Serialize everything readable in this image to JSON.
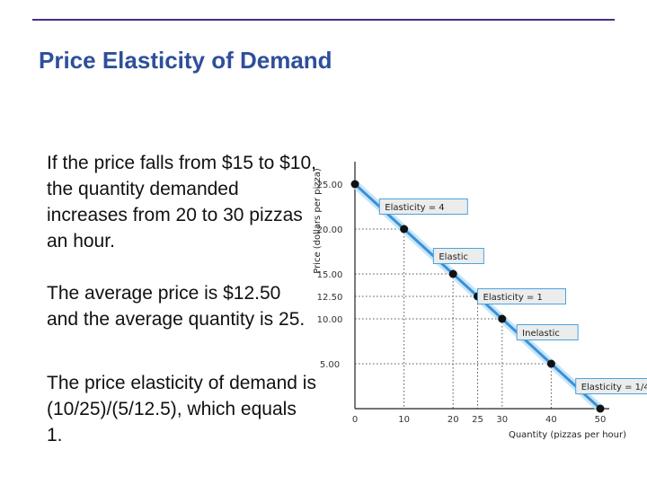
{
  "slide": {
    "title": "Price Elasticity of Demand",
    "paragraphs": [
      "If the price falls from $15 to $10, the quantity demanded increases from 20 to 30 pizzas an hour.",
      "The average price is $12.50 and the average quantity is 25.",
      "The price elasticity of demand is (10/25)/(5/12.5), which equals 1."
    ]
  },
  "colors": {
    "title": "#2e4f9a",
    "rule": "#4b2d7f",
    "demand_line": "#3d8fd6",
    "demand_glow": "#bfe3f7",
    "annotation_fill": "#ececec",
    "annotation_border": "#4aa3df"
  },
  "chart_data": {
    "type": "line",
    "xlabel": "Quantity (pizzas per hour)",
    "ylabel": "Price (dollars per pizza)",
    "xlim": [
      0,
      50
    ],
    "ylim": [
      0,
      27.5
    ],
    "x_ticks": [
      "0",
      "10",
      "20",
      "25",
      "30",
      "40",
      "50"
    ],
    "y_ticks": [
      "5.00",
      "10.00",
      "12.50",
      "15.00",
      "20.00",
      "25.00"
    ],
    "x_tick_values": [
      0,
      10,
      20,
      25,
      30,
      40,
      50
    ],
    "y_tick_values": [
      5,
      10,
      12.5,
      15,
      20,
      25
    ],
    "grid": "dotted guides to marked points",
    "series": [
      {
        "x": [
          0,
          10,
          20,
          25,
          30,
          40,
          50
        ],
        "y": [
          25,
          20,
          15,
          12.5,
          10,
          5,
          0
        ]
      }
    ],
    "annotations": [
      {
        "text": "Elasticity = 4",
        "x": 5,
        "y": 22.5
      },
      {
        "text": "Elastic",
        "x": 16,
        "y": 17
      },
      {
        "text": "Elasticity = 1",
        "x": 25,
        "y": 12.5
      },
      {
        "text": "Inelastic",
        "x": 33,
        "y": 8.5
      },
      {
        "text": "Elasticity = 1/4",
        "x": 45,
        "y": 2.5
      }
    ]
  }
}
